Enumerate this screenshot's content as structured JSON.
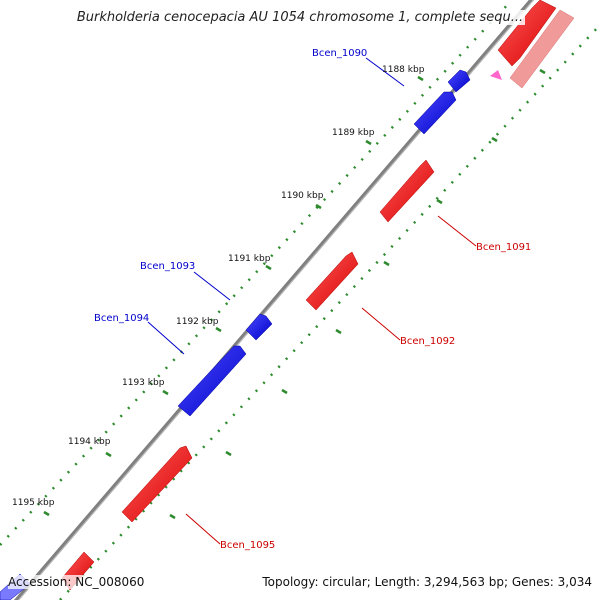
{
  "title": "Burkholderia cenocepacia AU 1054 chromosome 1, complete sequ...",
  "footer": {
    "accession": "Accession: NC_008060",
    "topology": "Topology: circular; Length: 3,294,563 bp; Genes: 3,034"
  },
  "colors": {
    "forward_gene": "#ff0000",
    "reverse_gene": "#0000ff",
    "backbone": "#808080",
    "tick": "#2e8b2e"
  },
  "ticks": [
    "1188 kbp",
    "1189 kbp",
    "1190 kbp",
    "1191 kbp",
    "1192 kbp",
    "1193 kbp",
    "1194 kbp",
    "1195 kbp"
  ],
  "gene_labels": {
    "bcen_1090": "Bcen_1090",
    "bcen_1091": "Bcen_1091",
    "bcen_1092": "Bcen_1092",
    "bcen_1093": "Bcen_1093",
    "bcen_1094": "Bcen_1094",
    "bcen_1095": "Bcen_1095"
  }
}
